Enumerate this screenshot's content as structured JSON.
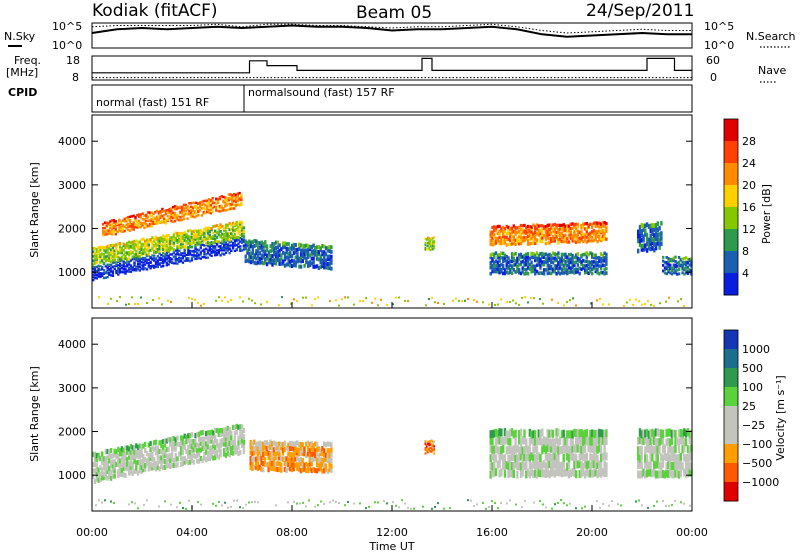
{
  "header": {
    "station": "Kodiak (fitACF)",
    "beam": "Beam 05",
    "date": "24/Sep/2011"
  },
  "side_labels": {
    "nsky": "N.Sky",
    "freq_line1": "Freq.",
    "freq_line2": "[MHz]",
    "cpid": "CPID",
    "nsearch": "N.Search",
    "nave": "Nave"
  },
  "cpid_segments": [
    {
      "label": "normal (fast) 151 RF",
      "start_h": 0.0,
      "end_h": 6.1
    },
    {
      "label": "normalsound (fast) 157 RF",
      "start_h": 6.1,
      "end_h": 24.0
    }
  ],
  "chart_data": [
    {
      "type": "line",
      "title": "N.Sky / N.Search",
      "ylabel_left": "N.Sky",
      "ylabel_right": "N.Search",
      "left_ticks": [
        "10^5",
        "10^0"
      ],
      "right_ticks": [
        "10^5",
        "10^0"
      ],
      "x": [
        0,
        1,
        2,
        3,
        4,
        5,
        6,
        7,
        8,
        9,
        10,
        11,
        12,
        13,
        14,
        15,
        16,
        17,
        18,
        19,
        20,
        21,
        22,
        23,
        24
      ],
      "series": [
        {
          "name": "N.Sky",
          "values": [
            0.6,
            0.75,
            0.8,
            0.75,
            0.8,
            0.85,
            0.8,
            0.85,
            0.9,
            0.85,
            0.85,
            0.8,
            0.7,
            0.75,
            0.75,
            0.8,
            0.85,
            0.75,
            0.55,
            0.45,
            0.5,
            0.55,
            0.6,
            0.55,
            0.55
          ]
        },
        {
          "name": "N.Search",
          "values": [
            0.85,
            0.9,
            0.9,
            0.9,
            0.9,
            0.95,
            0.85,
            0.95,
            0.95,
            0.9,
            0.9,
            0.85,
            0.8,
            0.85,
            0.85,
            0.9,
            0.95,
            0.85,
            0.7,
            0.6,
            0.65,
            0.7,
            0.75,
            0.7,
            0.7
          ]
        }
      ]
    },
    {
      "type": "line",
      "title": "Freq / Nave",
      "ylabel_left": "Freq. [MHz]",
      "ylabel_right": "Nave",
      "left_ticks": [
        "18",
        "8"
      ],
      "right_ticks": [
        "60",
        "0"
      ],
      "series": [
        {
          "name": "Freq",
          "points": [
            [
              0,
              11
            ],
            [
              6.3,
              11
            ],
            [
              6.3,
              16
            ],
            [
              7,
              16
            ],
            [
              7,
              14
            ],
            [
              8.2,
              14
            ],
            [
              8.2,
              12
            ],
            [
              13.2,
              12
            ],
            [
              13.2,
              17
            ],
            [
              13.6,
              17
            ],
            [
              13.6,
              12
            ],
            [
              22.2,
              12
            ],
            [
              22.2,
              17
            ],
            [
              23.3,
              17
            ],
            [
              23.3,
              12
            ],
            [
              24,
              12
            ]
          ]
        },
        {
          "name": "Nave",
          "values": [
            6,
            6,
            6,
            6,
            6,
            6,
            6,
            6,
            6,
            6,
            6,
            6,
            6,
            6,
            6,
            6,
            6,
            6,
            6,
            6,
            6,
            6,
            6,
            6,
            6
          ]
        }
      ]
    },
    {
      "type": "heatmap",
      "title": "Power",
      "xlabel": "Time UT",
      "ylabel": "Slant Range [km]",
      "xlim": [
        0,
        24
      ],
      "ylim": [
        180,
        4600
      ],
      "y_ticks": [
        "1000",
        "2000",
        "3000",
        "4000"
      ],
      "colorbar_label": "Power [dB]",
      "colorbar_ticks": [
        "28",
        "24",
        "20",
        "16",
        "12",
        "8",
        "4"
      ],
      "colorbar_colors": [
        "#e00000",
        "#ff4000",
        "#ff8c00",
        "#ffd000",
        "#86c800",
        "#2e9a4c",
        "#1c5fb0",
        "#0a1ee0"
      ],
      "bands": [
        {
          "t0": 0.0,
          "t1": 6.1,
          "r0_start": 820,
          "r0_end": 1500,
          "thick": 320,
          "level": 7
        },
        {
          "t0": 0.0,
          "t1": 6.1,
          "r0_start": 1150,
          "r0_end": 1800,
          "thick": 400,
          "level": 4
        },
        {
          "t0": 0.4,
          "t1": 6.0,
          "r0_start": 1800,
          "r0_end": 2500,
          "thick": 350,
          "level": 2
        },
        {
          "t0": 6.1,
          "t1": 9.6,
          "r0_start": 1200,
          "r0_end": 1050,
          "thick": 550,
          "level": 6
        },
        {
          "t0": 13.3,
          "t1": 13.7,
          "r0_start": 1500,
          "r0_end": 1500,
          "thick": 300,
          "level": 4
        },
        {
          "t0": 15.9,
          "t1": 20.6,
          "r0_start": 950,
          "r0_end": 950,
          "thick": 500,
          "level": 6
        },
        {
          "t0": 15.9,
          "t1": 20.6,
          "r0_start": 1600,
          "r0_end": 1700,
          "thick": 450,
          "level": 2
        },
        {
          "t0": 21.8,
          "t1": 22.8,
          "r0_start": 1450,
          "r0_end": 1500,
          "thick": 650,
          "level": 6
        },
        {
          "t0": 22.8,
          "t1": 24.0,
          "r0_start": 950,
          "r0_end": 950,
          "thick": 400,
          "level": 6
        }
      ]
    },
    {
      "type": "heatmap",
      "title": "Velocity",
      "xlabel": "Time UT",
      "ylabel": "Slant Range [km]",
      "xlim": [
        0,
        24
      ],
      "ylim": [
        180,
        4600
      ],
      "y_ticks": [
        "1000",
        "2000",
        "3000",
        "4000"
      ],
      "x_ticks": [
        "00:00",
        "04:00",
        "08:00",
        "12:00",
        "16:00",
        "20:00",
        "00:00"
      ],
      "colorbar_label": "Velocity [m s⁻¹]",
      "colorbar_ticks": [
        "1000",
        "500",
        "100",
        "25",
        "−25",
        "−100",
        "−500",
        "−1000"
      ],
      "colorbar_colors": [
        "#1436b4",
        "#1c6e8c",
        "#2e9a4c",
        "#5ad23c",
        "#c4c4be",
        "#c4c4be",
        "#ff9e00",
        "#ff5a00",
        "#e00000"
      ],
      "bands": [
        {
          "t0": 0.0,
          "t1": 6.1,
          "r0_start": 820,
          "r0_end": 1500,
          "thick": 700,
          "level": 4
        },
        {
          "t0": 6.3,
          "t1": 9.6,
          "r0_start": 1100,
          "r0_end": 1050,
          "thick": 700,
          "level": 6
        },
        {
          "t0": 13.3,
          "t1": 13.7,
          "r0_start": 1500,
          "r0_end": 1500,
          "thick": 300,
          "level": 7
        },
        {
          "t0": 15.9,
          "t1": 20.6,
          "r0_start": 950,
          "r0_end": 950,
          "thick": 1100,
          "level": 4
        },
        {
          "t0": 21.8,
          "t1": 24.0,
          "r0_start": 950,
          "r0_end": 950,
          "thick": 1100,
          "level": 4
        }
      ]
    }
  ]
}
